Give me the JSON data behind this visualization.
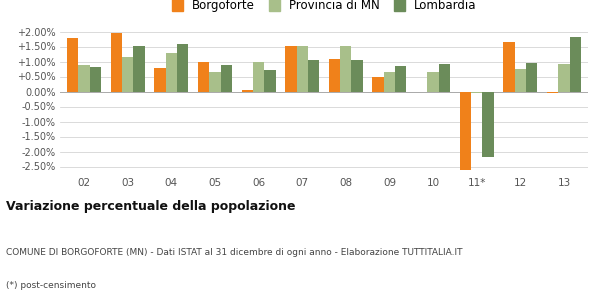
{
  "years": [
    "02",
    "03",
    "04",
    "05",
    "06",
    "07",
    "08",
    "09",
    "10",
    "11*",
    "12",
    "13"
  ],
  "borgoforte": [
    1.8,
    1.95,
    0.8,
    0.98,
    0.05,
    1.52,
    1.1,
    0.5,
    0.0,
    -2.6,
    1.65,
    -0.05
  ],
  "provincia_mn": [
    0.9,
    1.15,
    1.3,
    0.65,
    0.98,
    1.52,
    1.52,
    0.65,
    0.65,
    -0.05,
    0.75,
    0.92
  ],
  "lombardia": [
    0.82,
    1.52,
    1.58,
    0.88,
    0.72,
    1.04,
    1.04,
    0.85,
    0.92,
    -2.18,
    0.95,
    1.82
  ],
  "color_borgoforte": "#f0811a",
  "color_provincia": "#a8bf8a",
  "color_lombardia": "#6b8c5a",
  "title_bold": "Variazione percentuale della popolazione",
  "subtitle1": "COMUNE DI BORGOFORTE (MN) - Dati ISTAT al 31 dicembre di ogni anno - Elaborazione TUTTITALIA.IT",
  "subtitle2": "(*) post-censimento",
  "ylim": [
    -2.75,
    2.25
  ],
  "yticks": [
    -2.5,
    -2.0,
    -1.5,
    -1.0,
    -0.5,
    0.0,
    0.5,
    1.0,
    1.5,
    2.0
  ],
  "ytick_labels": [
    "-2.50%",
    "-2.00%",
    "-1.50%",
    "-1.00%",
    "-0.50%",
    "0.00%",
    "+0.50%",
    "+1.00%",
    "+1.50%",
    "+2.00%"
  ],
  "legend_labels": [
    "Borgoforte",
    "Provincia di MN",
    "Lombardia"
  ],
  "bg_color": "#ffffff",
  "grid_color": "#cccccc"
}
